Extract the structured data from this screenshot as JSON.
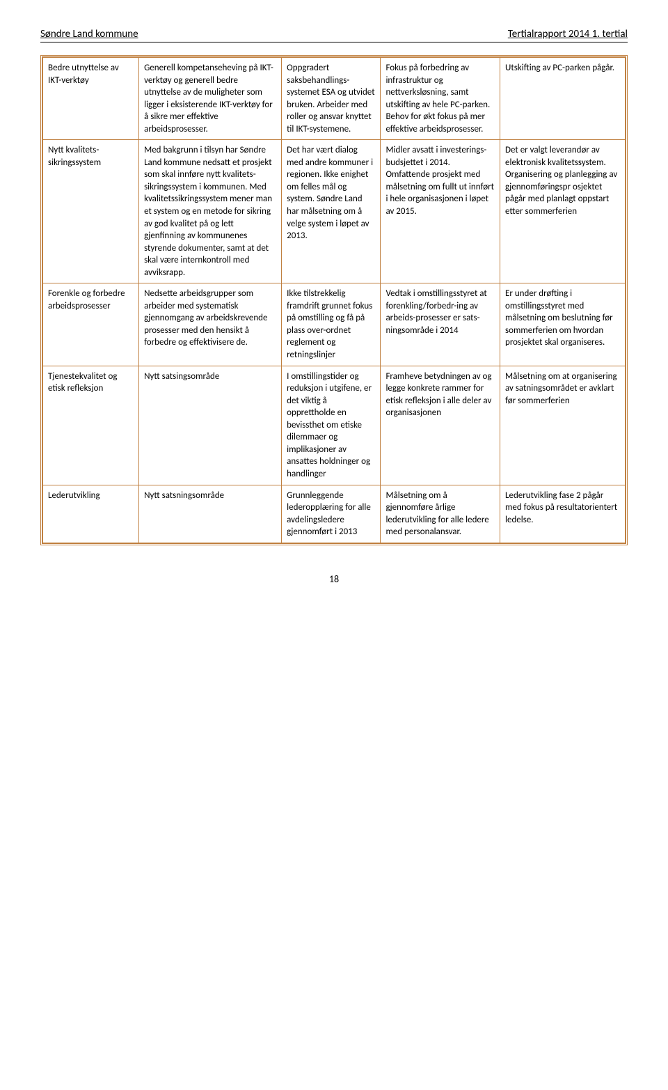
{
  "header": {
    "left": "Søndre Land kommune",
    "right": "Tertialrapport 2014 1. tertial"
  },
  "pageNumber": "18",
  "rows": [
    {
      "c1": "Bedre utnyttelse av IKT-verktøy",
      "c2": "Generell kompetanseheving på IKT-verktøy og generell bedre utnyttelse av de muligheter som ligger i eksisterende IKT-verktøy for å sikre mer effektive arbeidsprosesser.",
      "c3": "Oppgradert saksbehandlings-systemet ESA og utvidet bruken. Arbeider med roller og ansvar knyttet til IKT-systemene.",
      "c4": "Fokus på forbedring av infrastruktur og nettverksløsning, samt utskifting av hele PC-parken. Behov for økt fokus på mer effektive arbeidsprosesser.",
      "c5": "Utskifting av PC-parken pågår."
    },
    {
      "c1": "Nytt kvalitets-sikringssystem",
      "c2": "Med bakgrunn i tilsyn har Søndre Land kommune nedsatt et prosjekt som skal innføre nytt kvalitets-sikringssystem i kommunen. Med kvalitetssikringssystem mener man et system og en metode for sikring av god kvalitet på og lett gjenfinning av kommunenes styrende dokumenter, samt at det skal være internkontroll med avviksrapp.",
      "c3": "Det har vært dialog med andre kommuner i regionen. Ikke enighet om felles mål og system. Søndre Land har målsetning om å velge system i løpet av 2013.",
      "c4": "Midler avsatt i investerings-budsjettet i 2014. Omfattende prosjekt med målsetning om fullt ut innført i hele organisasjonen i løpet av 2015.",
      "c5": "Det er valgt leverandør av elektronisk kvalitetssystem. Organisering og planlegging av gjennomføringspr osjektet pågår med planlagt oppstart etter sommerferien"
    },
    {
      "c1": "Forenkle og forbedre arbeidsprosesser",
      "c2": "Nedsette arbeidsgrupper som arbeider med systematisk gjennomgang av arbeidskrevende prosesser med den hensikt å forbedre og effektivisere de.",
      "c3": "Ikke tilstrekkelig framdrift grunnet fokus på omstilling og få på plass over-ordnet reglement og retningslinjer",
      "c4": "Vedtak i omstillingsstyret at forenkling/forbedr-ing av arbeids-prosesser er sats-ningsområde i 2014",
      "c5": "Er under drøfting i omstillingsstyret med målsetning om beslutning før sommerferien om hvordan prosjektet skal organiseres."
    },
    {
      "c1": "Tjenestekvalitet og etisk refleksjon",
      "c2": "Nytt satsingsområde",
      "c3": "I omstillingstider og reduksjon i utgifene, er det viktig å opprettholde en bevissthet om etiske dilemmaer og implikasjoner av ansattes holdninger og handlinger",
      "c4": "Framheve betydningen av og legge konkrete rammer for etisk refleksjon i alle deler av organisasjonen",
      "c5": "Målsetning om at organisering av satningsområdet er avklart før sommerferien"
    },
    {
      "c1": "Lederutvikling",
      "c2": "Nytt satsningsområde",
      "c3": "Grunnleggende lederopplæring for alle avdelingsledere gjennomført i 2013",
      "c4": "Målsetning om å gjennomføre årlige lederutvikling for alle ledere med personalansvar.",
      "c5": "Lederutvikling fase 2 pågår med fokus på resultatorientert ledelse."
    }
  ]
}
